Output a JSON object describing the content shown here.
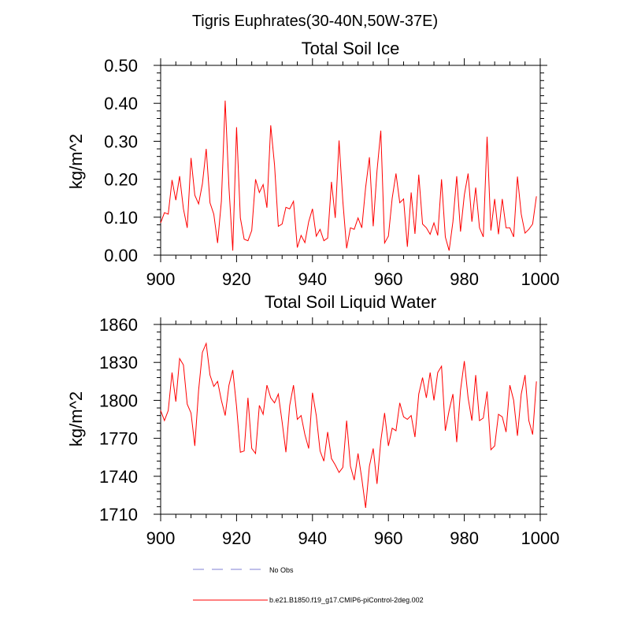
{
  "figure": {
    "suptitle": "Tigris Euphrates(30-40N,50W-37E)"
  },
  "legend": {
    "obs_label": "No Obs",
    "model_label": "b.e21.B1850.f19_g17.CMIP6-piControl-2deg.002",
    "obs_color": "#9999dd",
    "model_color": "#ff0000"
  },
  "chart_data": [
    {
      "type": "line",
      "title": "Total Soil Ice",
      "xlabel": "",
      "ylabel": "kg/m^2",
      "xlim": [
        900,
        1000
      ],
      "ylim": [
        0,
        0.5
      ],
      "xticks": [
        900,
        920,
        940,
        960,
        980,
        1000
      ],
      "yticks": [
        0,
        0.1,
        0.2,
        0.3,
        0.4,
        0.5
      ],
      "ytick_labels": [
        "0.00",
        "0.10",
        "0.20",
        "0.30",
        "0.40",
        "0.50"
      ],
      "grid": false,
      "series": [
        {
          "name": "b.e21.B1850.f19_g17.CMIP6-piControl-2deg.002",
          "color": "#ff0000",
          "x_start": 900,
          "x_step": 1,
          "values": [
            0.085,
            0.112,
            0.108,
            0.198,
            0.145,
            0.208,
            0.122,
            0.072,
            0.256,
            0.158,
            0.135,
            0.188,
            0.28,
            0.138,
            0.108,
            0.032,
            0.142,
            0.407,
            0.178,
            0.012,
            0.337,
            0.098,
            0.042,
            0.038,
            0.065,
            0.2,
            0.165,
            0.186,
            0.125,
            0.342,
            0.238,
            0.076,
            0.082,
            0.126,
            0.122,
            0.142,
            0.02,
            0.052,
            0.033,
            0.088,
            0.122,
            0.05,
            0.068,
            0.038,
            0.045,
            0.193,
            0.098,
            0.302,
            0.142,
            0.018,
            0.072,
            0.068,
            0.098,
            0.072,
            0.178,
            0.258,
            0.076,
            0.222,
            0.328,
            0.032,
            0.05,
            0.15,
            0.215,
            0.138,
            0.148,
            0.022,
            0.165,
            0.056,
            0.212,
            0.082,
            0.072,
            0.055,
            0.085,
            0.052,
            0.2,
            0.048,
            0.012,
            0.088,
            0.208,
            0.062,
            0.158,
            0.215,
            0.088,
            0.178,
            0.072,
            0.048,
            0.312,
            0.065,
            0.148,
            0.055,
            0.148,
            0.072,
            0.072,
            0.048,
            0.207,
            0.108,
            0.058,
            0.068,
            0.082,
            0.155
          ]
        }
      ]
    },
    {
      "type": "line",
      "title": "Total Soil Liquid Water",
      "xlabel": "",
      "ylabel": "kg/m^2",
      "xlim": [
        900,
        1000
      ],
      "ylim": [
        1710,
        1860
      ],
      "xticks": [
        900,
        920,
        940,
        960,
        980,
        1000
      ],
      "yticks": [
        1710,
        1740,
        1770,
        1800,
        1830,
        1860
      ],
      "ytick_labels": [
        "1710",
        "1740",
        "1770",
        "1800",
        "1830",
        "1860"
      ],
      "grid": false,
      "series": [
        {
          "name": "b.e21.B1850.f19_g17.CMIP6-piControl-2deg.002",
          "color": "#ff0000",
          "x_start": 900,
          "x_step": 1,
          "values": [
            1792,
            1784,
            1792,
            1822,
            1799,
            1833,
            1828,
            1797,
            1790,
            1764,
            1808,
            1838,
            1845,
            1820,
            1811,
            1815,
            1800,
            1788,
            1812,
            1824,
            1795,
            1759,
            1760,
            1802,
            1762,
            1758,
            1796,
            1789,
            1812,
            1802,
            1798,
            1805,
            1783,
            1759,
            1796,
            1812,
            1785,
            1788,
            1773,
            1762,
            1806,
            1788,
            1760,
            1752,
            1775,
            1754,
            1749,
            1743,
            1747,
            1784,
            1748,
            1737,
            1758,
            1738,
            1715,
            1748,
            1762,
            1734,
            1768,
            1790,
            1764,
            1778,
            1776,
            1798,
            1787,
            1785,
            1788,
            1771,
            1805,
            1818,
            1802,
            1822,
            1800,
            1822,
            1827,
            1776,
            1792,
            1805,
            1767,
            1808,
            1831,
            1802,
            1784,
            1820,
            1784,
            1786,
            1807,
            1761,
            1764,
            1789,
            1787,
            1775,
            1812,
            1800,
            1772,
            1805,
            1820,
            1784,
            1773,
            1815
          ]
        }
      ]
    }
  ]
}
